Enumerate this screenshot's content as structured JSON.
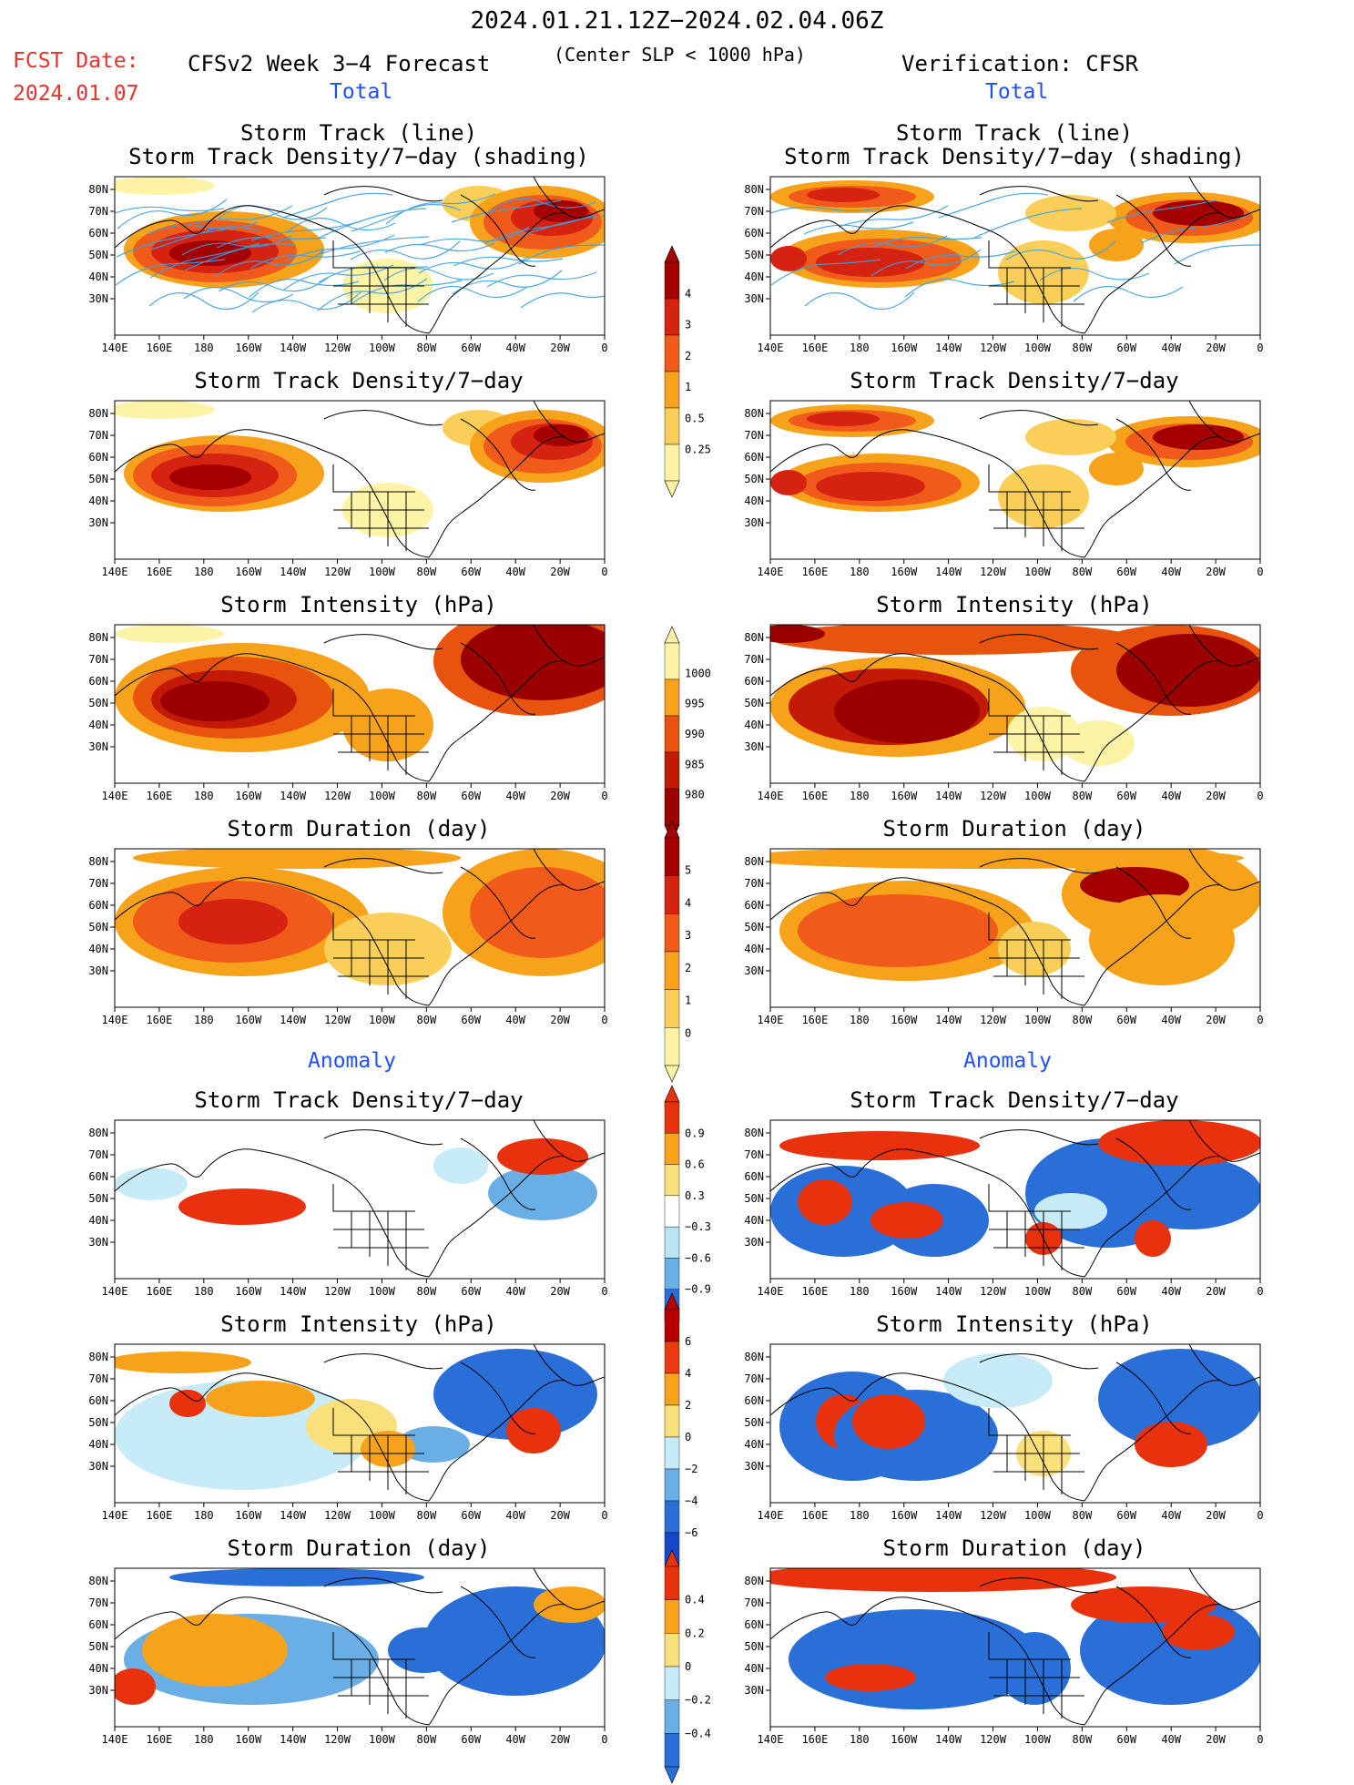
{
  "header": {
    "title": "2024.01.21.12Z−2024.02.04.06Z",
    "fcst_label": "FCST Date:",
    "fcst_date": "2024.01.07",
    "model_title": "CFSv2 Week 3−4 Forecast",
    "center_slp": "(Center SLP < 1000 hPa)",
    "verification_title": "Verification: CFSR"
  },
  "sections": {
    "total": "Total",
    "anomaly": "Anomaly"
  },
  "axes": {
    "lon_ticks": [
      "140E",
      "160E",
      "180",
      "160W",
      "140W",
      "120W",
      "100W",
      "80W",
      "60W",
      "40W",
      "20W",
      "0"
    ],
    "lat_ticks": [
      "80N",
      "70N",
      "60N",
      "50N",
      "40N",
      "30N"
    ]
  },
  "panels": {
    "r1_title_a": "Storm Track (line)",
    "r1_title_b": "Storm Track Density/7−day (shading)",
    "r2_title": "Storm Track Density/7−day",
    "r3_title": "Storm Intensity (hPa)",
    "r4_title": "Storm Duration (day)",
    "r5_title": "Storm Track Density/7−day",
    "r6_title": "Storm Intensity (hPa)",
    "r7_title": "Storm Duration (day)"
  },
  "colorbars": {
    "density": {
      "labels": [
        "4",
        "3",
        "2",
        "1",
        "0.5",
        "0.25"
      ],
      "colors": [
        "#a50000",
        "#d62210",
        "#f05a1a",
        "#f7a21b",
        "#f9cf5a",
        "#fdf3a6"
      ]
    },
    "intensity": {
      "labels": [
        "1000",
        "995",
        "990",
        "985",
        "980"
      ],
      "colors": [
        "#fdf3a6",
        "#f7a21b",
        "#e8540e",
        "#c21a06",
        "#9a0000"
      ]
    },
    "duration": {
      "labels": [
        "5",
        "4",
        "3",
        "2",
        "1",
        "0"
      ],
      "colors": [
        "#a50000",
        "#d62210",
        "#f05a1a",
        "#f7a21b",
        "#f9cf5a",
        "#fdf3a6"
      ]
    },
    "anom_density": {
      "labels": [
        "0.9",
        "0.6",
        "0.3",
        "−0.3",
        "−0.6",
        "−0.9"
      ],
      "colors": [
        "#e8320e",
        "#f7a21b",
        "#fae07a",
        "#ffffff",
        "#b8e4f4",
        "#6aaee6",
        "#2a6ed8"
      ]
    },
    "anom_intensity": {
      "labels": [
        "6",
        "4",
        "2",
        "0",
        "−2",
        "−4",
        "−6"
      ],
      "colors": [
        "#b80000",
        "#ea3a10",
        "#f7a21b",
        "#fae07a",
        "#c8ecf7",
        "#6aaee6",
        "#2a6ed8",
        "#1448c8"
      ]
    },
    "anom_duration": {
      "labels": [
        "0.4",
        "0.2",
        "0",
        "−0.2",
        "−0.4"
      ],
      "colors": [
        "#e8320e",
        "#f7a21b",
        "#fae07a",
        "#c8ecf7",
        "#6aaee6",
        "#2a6ed8"
      ]
    }
  },
  "colors": {
    "red_text": "#e8322d",
    "blue_text": "#1f4fff",
    "track_line": "#3aa0e6"
  }
}
